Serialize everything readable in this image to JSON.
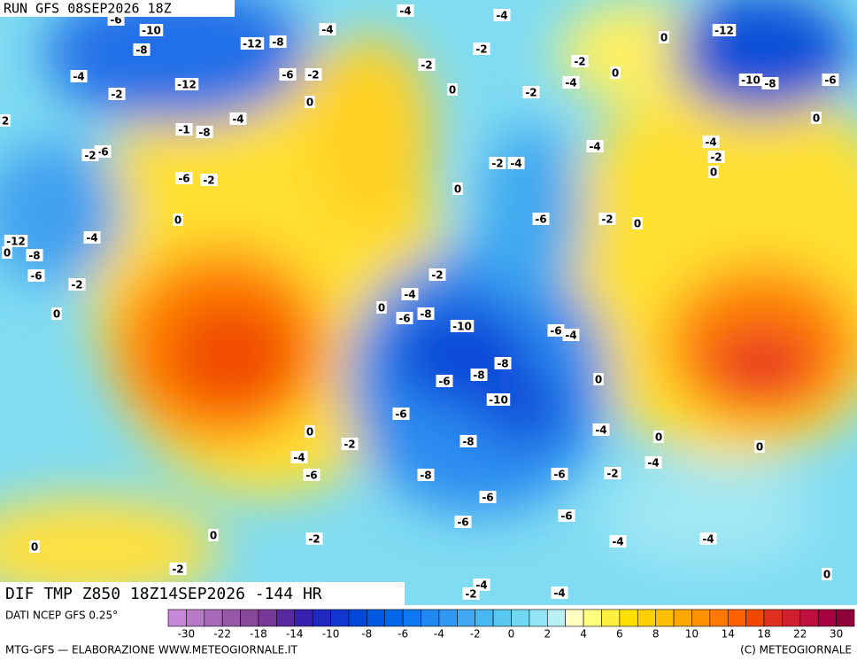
{
  "header": {
    "run": "RUN GFS 08SEP2026 18Z"
  },
  "map": {
    "title": "DIF TMP Z850 18Z14SEP2026 -144 HR",
    "contour_labels": [
      "-6",
      "-10",
      "-8",
      "-12",
      "-8",
      "-4",
      "-4",
      "-4",
      "0",
      "-12",
      "-4",
      "-2",
      "-12",
      "-6",
      "-2",
      "0",
      "-2",
      "-2",
      "-2",
      "0",
      "-4",
      "-2",
      "0",
      "-10",
      "-8",
      "-6",
      "-4",
      "-1",
      "-8",
      "2",
      "0",
      "-4",
      "-2",
      "-4",
      "-2",
      "-4",
      "0",
      "-6",
      "-2",
      "-6",
      "-2",
      "0",
      "0",
      "-6",
      "-2",
      "0",
      "-12",
      "0",
      "-8",
      "-4",
      "-6",
      "-2",
      "-2",
      "-4",
      "0",
      "-6",
      "-8",
      "0",
      "-10",
      "-6",
      "-4",
      "-8",
      "-6",
      "-8",
      "0",
      "-10",
      "-6",
      "-4",
      "0",
      "-2",
      "0",
      "0",
      "-4",
      "-8",
      "-4",
      "-6",
      "-8",
      "-6",
      "-2",
      "-6",
      "-6",
      "-6",
      "0",
      "-2",
      "-4",
      "-4",
      "0",
      "-2",
      "0",
      "-4",
      "-2",
      "-4"
    ]
  },
  "colorbar": {
    "source": "DATI NCEP GFS 0.25°",
    "colors": [
      "#c888d8",
      "#b878c8",
      "#a868b8",
      "#9858a8",
      "#884898",
      "#783898",
      "#5828a0",
      "#3820b0",
      "#2028c0",
      "#1038d0",
      "#0048d8",
      "#0058e0",
      "#0068e8",
      "#1078f0",
      "#2088f0",
      "#3098f0",
      "#40a8f0",
      "#48b8f0",
      "#58c8f0",
      "#70d8f0",
      "#90e4f4",
      "#b8f0f4",
      "#ffffc0",
      "#ffff80",
      "#fff040",
      "#ffe000",
      "#ffd000",
      "#ffc000",
      "#ffa800",
      "#ff9000",
      "#ff7800",
      "#ff6000",
      "#f04800",
      "#e03020",
      "#d02030",
      "#c01040",
      "#a80040",
      "#900038"
    ],
    "labels": [
      -30,
      -22,
      -18,
      -14,
      -10,
      -8,
      -6,
      -4,
      -2,
      0,
      2,
      4,
      6,
      8,
      10,
      14,
      18,
      22,
      30
    ]
  },
  "footer": {
    "left": "MTG-GFS — ELABORAZIONE WWW.METEOGIORNALE.IT",
    "right": "(C) METEOGIORNALE"
  }
}
